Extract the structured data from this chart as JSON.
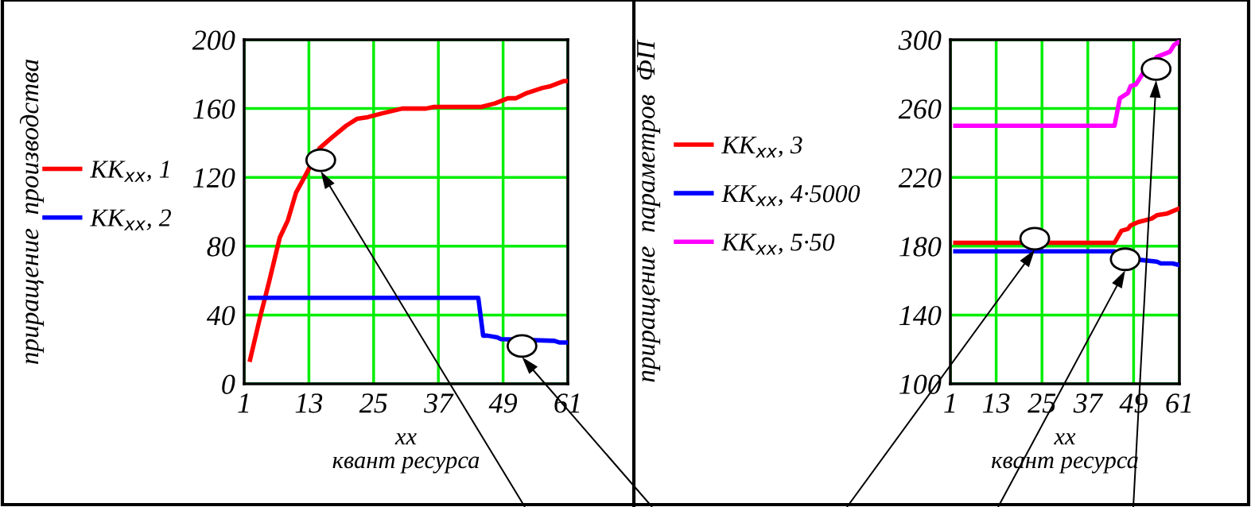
{
  "chart_data": [
    {
      "type": "line",
      "ylabel": "приращение  производства",
      "xlabel": "xx\nквант ресурса",
      "xlim": [
        1,
        61
      ],
      "xticks": [
        1,
        13,
        25,
        37,
        49,
        61
      ],
      "ylim": [
        0,
        200
      ],
      "yticks": [
        0,
        40,
        80,
        120,
        160,
        200
      ],
      "grid": true,
      "legend": "left",
      "series": [
        {
          "name": "KK$_{xx}$, 1",
          "color": "#ff0000",
          "x": [
            2.1,
            3.9,
            5.6,
            7.6,
            9.1,
            10.6,
            12.5,
            15,
            17.2,
            19.9,
            21.9,
            23.9,
            26.3,
            30.3,
            34.7,
            36.2,
            45,
            47.5,
            49.9,
            51.4,
            53.4,
            56.3,
            57.8,
            60.3,
            61
          ],
          "values": [
            14,
            38,
            59,
            85,
            95,
            111,
            122,
            137,
            143,
            150,
            154,
            155,
            157,
            160,
            160,
            161,
            161,
            163,
            166,
            166,
            169,
            172,
            173,
            176,
            176
          ]
        },
        {
          "name": "KK$_{xx}$, 2",
          "color": "#0000ff",
          "x": [
            2.1,
            44.4,
            45.3,
            46.1,
            47.9,
            48.6,
            58.5,
            59.5,
            61
          ],
          "values": [
            50,
            50,
            28,
            28,
            27,
            26,
            25,
            24,
            24
          ]
        }
      ]
    },
    {
      "type": "line",
      "ylabel": "приращение  параметров  ФП",
      "xlabel": "xx\nквант ресурса",
      "xlim": [
        1,
        61
      ],
      "xticks": [
        1,
        13,
        25,
        37,
        49,
        61
      ],
      "ylim": [
        100,
        300
      ],
      "yticks": [
        100,
        140,
        180,
        220,
        260,
        300
      ],
      "grid": true,
      "legend": "left",
      "series": [
        {
          "name": "KK$_{xx}$, 3",
          "color": "#ff0000",
          "x": [
            2.3,
            44,
            45.8,
            47.5,
            48.2,
            50.2,
            53.7,
            55.1,
            57.8,
            61
          ],
          "values": [
            182,
            182,
            189,
            190,
            192,
            194,
            196,
            198,
            199,
            202
          ]
        },
        {
          "name": "KK$_{xx}$, 4·5000",
          "color": "#0000ff",
          "x": [
            2.3,
            44,
            50.9,
            55.1,
            56.1,
            59.2,
            61
          ],
          "values": [
            177,
            177,
            172,
            171,
            170,
            170,
            169
          ]
        },
        {
          "name": "KK$_{xx}$, 5·50",
          "color": "#ff00ff",
          "x": [
            2.3,
            44,
            45.4,
            47.5,
            48.2,
            49.6,
            51.3,
            55.1,
            58.5,
            59.6,
            61
          ],
          "values": [
            250,
            250,
            266,
            269,
            273,
            274,
            280,
            290,
            293,
            297,
            299
          ]
        }
      ]
    }
  ]
}
